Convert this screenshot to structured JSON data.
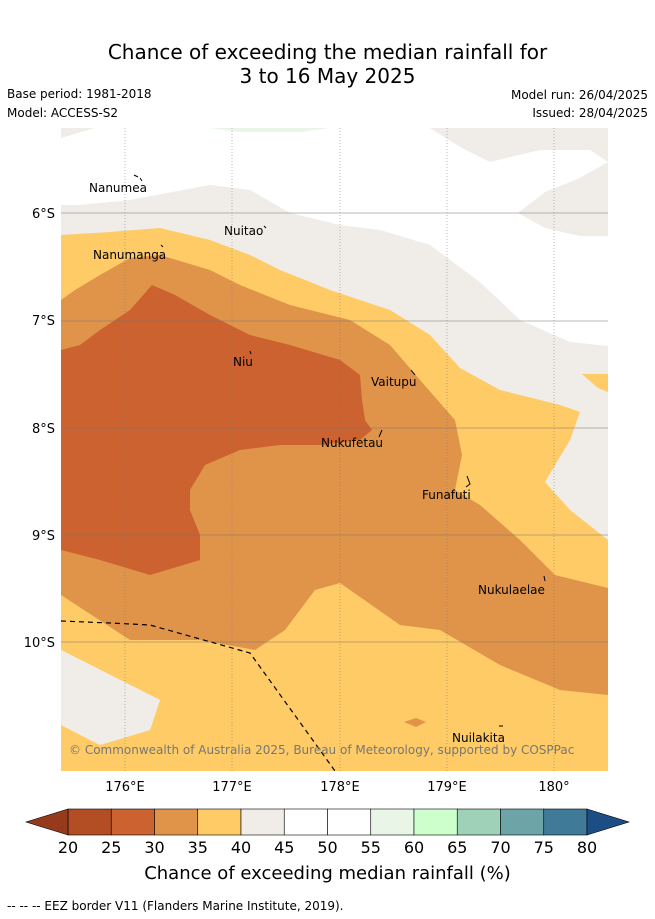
{
  "header": {
    "title_line1": "Chance of exceeding the median rainfall for",
    "title_line2": "3 to 16 May 2025",
    "base_period": "Base period: 1981-2018",
    "model": "Model: ACCESS-S2",
    "model_run": "Model run: 26/04/2025",
    "issued": "Issued: 28/04/2025"
  },
  "map": {
    "lat_labels": [
      "6°S",
      "7°S",
      "8°S",
      "9°S",
      "10°S"
    ],
    "lon_labels": [
      "176°E",
      "177°E",
      "178°E",
      "179°E",
      "180°"
    ],
    "places": [
      {
        "name": "Nanumea"
      },
      {
        "name": "Nuitao"
      },
      {
        "name": "Nanumanga"
      },
      {
        "name": "Niu"
      },
      {
        "name": "Vaitupu"
      },
      {
        "name": "Nukufetau"
      },
      {
        "name": "Funafuti"
      },
      {
        "name": "Nukulaelae"
      },
      {
        "name": "Nuilakita"
      }
    ],
    "copyright": "© Commonwealth of Australia 2025, Bureau of Meteorology, supported by COSPPac"
  },
  "colorbar": {
    "ticks": [
      "20",
      "25",
      "30",
      "35",
      "40",
      "45",
      "50",
      "55",
      "60",
      "65",
      "70",
      "75",
      "80"
    ],
    "colors": [
      "#b24d24",
      "#cb6230",
      "#e0944a",
      "#fecb66",
      "#f0ece7",
      "#ffffff",
      "#ffffff",
      "#e9f5e6",
      "#ccffcc",
      "#9ed1b8",
      "#6ca4a7",
      "#3f7a99"
    ],
    "under_color": "#963a1c",
    "over_color": "#1c4e85",
    "title": "Chance of exceeding median rainfall (%)"
  },
  "footnote": "--  --  -- EEZ border V11 (Flanders Marine Institute, 2019)."
}
